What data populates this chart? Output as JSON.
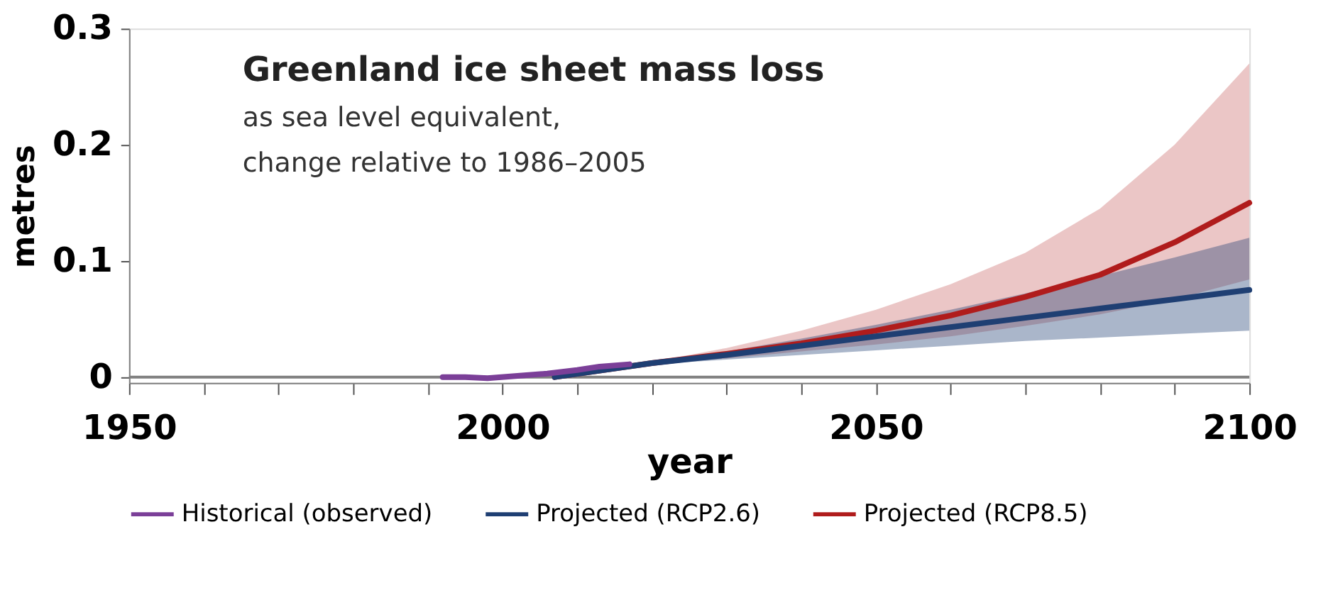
{
  "chart_data": {
    "type": "line",
    "title": "Greenland ice sheet mass loss",
    "subtitle": "as sea level equivalent,\nchange relative to 1986–2005",
    "xlabel": "year",
    "ylabel": "metres",
    "xlim": [
      1950,
      2100
    ],
    "xticks": [
      1950,
      {
        "value": 1960,
        "label": null
      },
      {
        "value": 1970,
        "label": null
      },
      {
        "value": 1980,
        "label": null
      },
      {
        "value": 1990,
        "label": null
      },
      2000,
      {
        "value": 2010,
        "label": null
      },
      {
        "value": 2020,
        "label": null
      },
      {
        "value": 2030,
        "label": null
      },
      {
        "value": 2040,
        "label": null
      },
      2050,
      {
        "value": 2060,
        "label": null
      },
      {
        "value": 2070,
        "label": null
      },
      {
        "value": 2080,
        "label": null
      },
      {
        "value": 2090,
        "label": null
      },
      2100
    ],
    "ylim": [
      -0.005,
      0.3
    ],
    "yticks": [
      0,
      0.1,
      0.2,
      0.3
    ],
    "grid": false,
    "legend": "bottom",
    "ref_lines": [
      {
        "axis": "y",
        "value": 0,
        "color": "#808080"
      }
    ],
    "series": [
      {
        "name": "Projected (RCP8.5)",
        "color": "#b01c1c",
        "x": [
          2007,
          2020,
          2030,
          2040,
          2050,
          2060,
          2070,
          2080,
          2090,
          2100
        ],
        "values": [
          0,
          0.012,
          0.02,
          0.029,
          0.04,
          0.053,
          0.069,
          0.088,
          0.116,
          0.15
        ],
        "lower": [
          0,
          0.011,
          0.016,
          0.022,
          0.028,
          0.035,
          0.044,
          0.054,
          0.067,
          0.084
        ],
        "upper": [
          0,
          0.013,
          0.025,
          0.04,
          0.058,
          0.08,
          0.107,
          0.145,
          0.2,
          0.27
        ]
      },
      {
        "name": "Projected (RCP2.6)",
        "color": "#1f3f73",
        "x": [
          2007,
          2020,
          2030,
          2040,
          2050,
          2060,
          2070,
          2080,
          2090,
          2100
        ],
        "values": [
          0,
          0.012,
          0.019,
          0.027,
          0.035,
          0.043,
          0.051,
          0.059,
          0.067,
          0.075
        ],
        "lower": [
          0,
          0.011,
          0.015,
          0.019,
          0.023,
          0.027,
          0.031,
          0.034,
          0.037,
          0.04
        ],
        "upper": [
          0,
          0.013,
          0.022,
          0.033,
          0.045,
          0.058,
          0.072,
          0.087,
          0.103,
          0.12
        ]
      },
      {
        "name": "Historical (observed)",
        "color": "#7b3f98",
        "x": [
          1992,
          1995,
          1998,
          2002,
          2006,
          2010,
          2013,
          2017
        ],
        "values": [
          0,
          0,
          -0.001,
          0.001,
          0.003,
          0.006,
          0.009,
          0.011
        ]
      }
    ]
  }
}
